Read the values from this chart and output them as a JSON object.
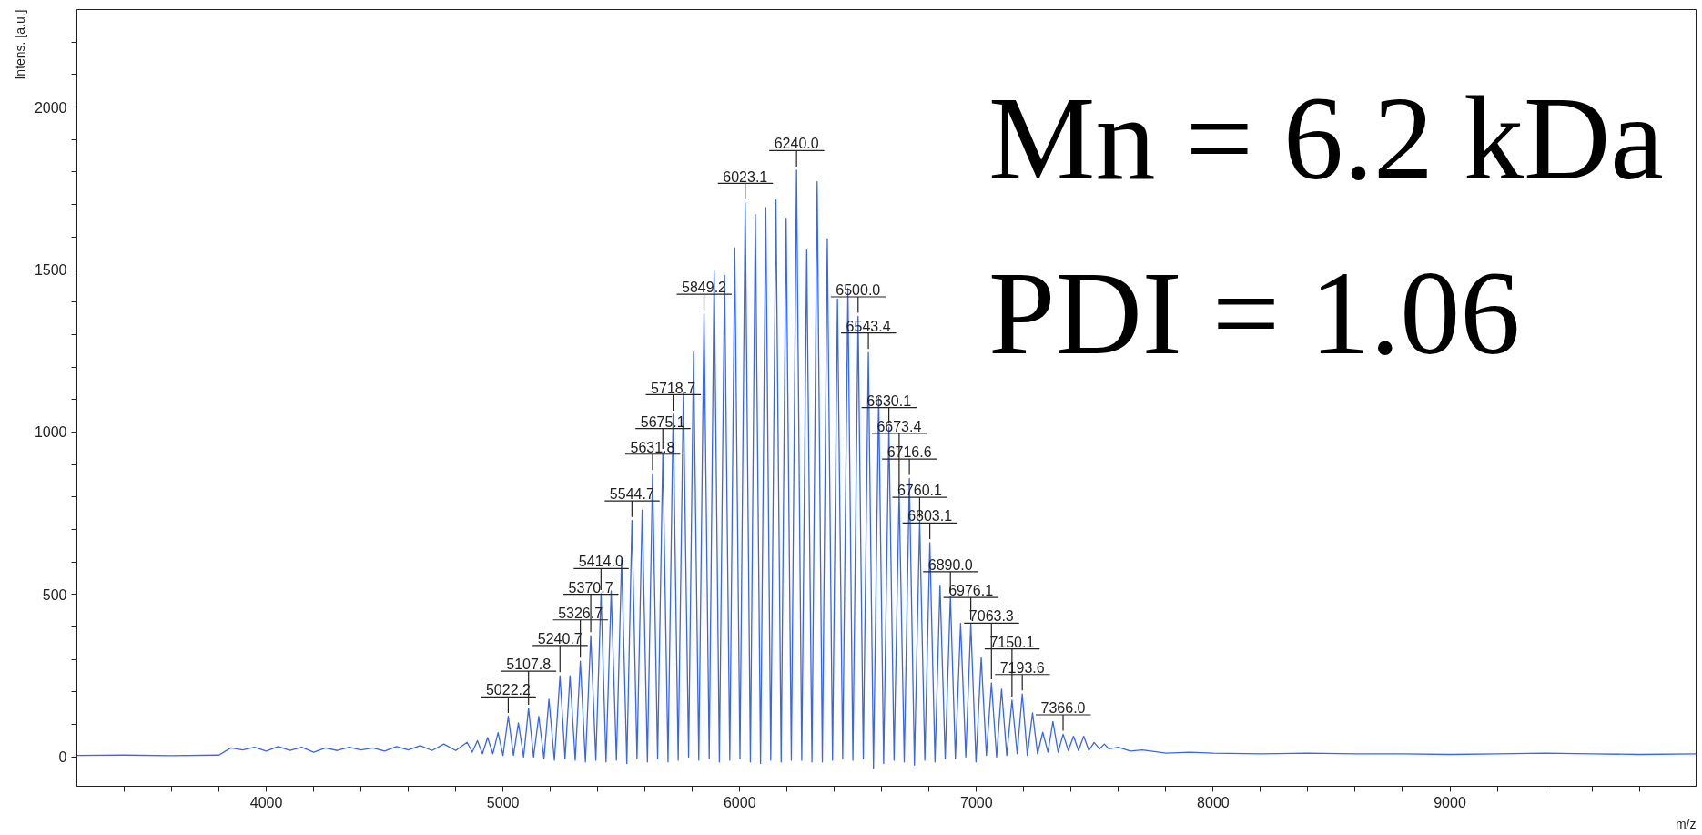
{
  "chart_data": {
    "type": "line",
    "xlabel": "m/z",
    "ylabel": "Intens. [a.u.]",
    "grid": false,
    "marker": "none",
    "line_style": "solid",
    "xlim": [
      3200,
      10040
    ],
    "ylim": [
      -90,
      2300
    ],
    "xticks": [
      {
        "value": 3400,
        "label": null
      },
      {
        "value": 3600,
        "label": null
      },
      {
        "value": 3800,
        "label": null
      },
      4000,
      {
        "value": 4200,
        "label": null
      },
      {
        "value": 4400,
        "label": null
      },
      {
        "value": 4600,
        "label": null
      },
      {
        "value": 4800,
        "label": null
      },
      5000,
      {
        "value": 5200,
        "label": null
      },
      {
        "value": 5400,
        "label": null
      },
      {
        "value": 5600,
        "label": null
      },
      {
        "value": 5800,
        "label": null
      },
      6000,
      {
        "value": 6200,
        "label": null
      },
      {
        "value": 6400,
        "label": null
      },
      {
        "value": 6600,
        "label": null
      },
      {
        "value": 6800,
        "label": null
      },
      7000,
      {
        "value": 7200,
        "label": null
      },
      {
        "value": 7400,
        "label": null
      },
      {
        "value": 7600,
        "label": null
      },
      {
        "value": 7800,
        "label": null
      },
      8000,
      {
        "value": 8200,
        "label": null
      },
      {
        "value": 8400,
        "label": null
      },
      {
        "value": 8600,
        "label": null
      },
      {
        "value": 8800,
        "label": null
      },
      9000,
      {
        "value": 9200,
        "label": null
      },
      {
        "value": 9400,
        "label": null
      },
      {
        "value": 9600,
        "label": null
      },
      {
        "value": 9800,
        "label": null
      }
    ],
    "yticks": [
      0,
      {
        "value": 100,
        "label": null
      },
      {
        "value": 200,
        "label": null
      },
      {
        "value": 300,
        "label": null
      },
      {
        "value": 400,
        "label": null
      },
      500,
      {
        "value": 600,
        "label": null
      },
      {
        "value": 700,
        "label": null
      },
      {
        "value": 800,
        "label": null
      },
      {
        "value": 900,
        "label": null
      },
      1000,
      {
        "value": 1100,
        "label": null
      },
      {
        "value": 1200,
        "label": null
      },
      {
        "value": 1300,
        "label": null
      },
      {
        "value": 1400,
        "label": null
      },
      1500,
      {
        "value": 1600,
        "label": null
      },
      {
        "value": 1700,
        "label": null
      },
      {
        "value": 1800,
        "label": null
      },
      {
        "value": 1900,
        "label": null
      },
      2000,
      {
        "value": 2100,
        "label": null
      },
      {
        "value": 2200,
        "label": null
      }
    ],
    "series": [
      {
        "color": "#3a66e8",
        "x": [
          3200,
          3400,
          3600,
          3800,
          3850,
          3900,
          3950,
          4000,
          4050,
          4100,
          4150,
          4200,
          4250,
          4300,
          4350,
          4400,
          4450,
          4500,
          4550,
          4600,
          4650,
          4700,
          4750,
          4800,
          4848,
          4870,
          4892,
          4913,
          4935,
          4957,
          4979,
          5000,
          5022.2,
          5044,
          5065,
          5087,
          5107.8,
          5129,
          5151,
          5173,
          5194,
          5217,
          5240.7,
          5262,
          5283,
          5305,
          5326.7,
          5348,
          5370.7,
          5392,
          5414.0,
          5435,
          5457,
          5479,
          5501,
          5523,
          5544.7,
          5566,
          5588,
          5610,
          5631.8,
          5653,
          5675.1,
          5697,
          5718.7,
          5740,
          5762,
          5784,
          5805,
          5827,
          5849.2,
          5871,
          5892,
          5914,
          5936,
          5958,
          5979,
          6001,
          6023.1,
          6045,
          6066,
          6088,
          6110,
          6131,
          6153,
          6175,
          6196,
          6218,
          6240.0,
          6262,
          6283,
          6305,
          6327,
          6349,
          6370,
          6392,
          6413,
          6435,
          6457,
          6478,
          6500.0,
          6522,
          6543.4,
          6565,
          6587,
          6608,
          6630.1,
          6652,
          6673.4,
          6695,
          6716.6,
          6738,
          6760.1,
          6782,
          6803.1,
          6825,
          6846,
          6868,
          6890.0,
          6911,
          6933,
          6955,
          6976.1,
          6998,
          7020,
          7042,
          7063.3,
          7085,
          7106,
          7128,
          7150.1,
          7172,
          7193.6,
          7215,
          7237,
          7258,
          7280,
          7302,
          7323,
          7345,
          7366.0,
          7388,
          7410,
          7431,
          7453,
          7475,
          7497,
          7520,
          7540,
          7560,
          7600,
          7650,
          7700,
          7800,
          7900,
          8000,
          8200,
          8400,
          8600,
          8800,
          9000,
          9200,
          9400,
          9600,
          9800,
          10040
        ],
        "values": [
          5,
          6,
          4,
          6,
          28,
          22,
          30,
          18,
          32,
          20,
          30,
          15,
          28,
          20,
          30,
          22,
          28,
          18,
          32,
          22,
          35,
          20,
          40,
          20,
          45,
          15,
          50,
          10,
          60,
          10,
          75,
          5,
          125,
          5,
          105,
          0,
          150,
          0,
          125,
          -5,
          178,
          -10,
          250,
          -5,
          250,
          -10,
          295,
          -15,
          373,
          -10,
          503,
          -15,
          511,
          -10,
          609,
          -20,
          728,
          -5,
          760,
          -15,
          872,
          -5,
          937,
          -15,
          1055,
          -10,
          1121,
          0,
          1246,
          -10,
          1364,
          -5,
          1495,
          -15,
          1482,
          -10,
          1567,
          -5,
          1705,
          -15,
          1669,
          -20,
          1691,
          -10,
          1714,
          -15,
          1658,
          -10,
          1806,
          -10,
          1560,
          -15,
          1770,
          -15,
          1595,
          -10,
          1409,
          -5,
          1442,
          -10,
          1356,
          -5,
          1245,
          -35,
          1107,
          -20,
          1015,
          -10,
          818,
          -15,
          857,
          -25,
          726,
          -10,
          660,
          -15,
          529,
          -5,
          496,
          -5,
          411,
          0,
          411,
          -15,
          306,
          5,
          228,
          0,
          209,
          5,
          175,
          10,
          194,
          5,
          136,
          10,
          76,
          15,
          109,
          15,
          70,
          20,
          64,
          20,
          64,
          20,
          45,
          25,
          40,
          25,
          30,
          18,
          22,
          12,
          15,
          12,
          10,
          12,
          10,
          10,
          8,
          10,
          12,
          10,
          8,
          10
        ]
      }
    ],
    "annotations": [
      {
        "text": "5022.2",
        "x": 5022.2,
        "y": 125
      },
      {
        "text": "5107.8",
        "x": 5107.8,
        "y": 150
      },
      {
        "text": "5240.7",
        "x": 5240.7,
        "y": 250
      },
      {
        "text": "5326.7",
        "x": 5326.7,
        "y": 295
      },
      {
        "text": "5370.7",
        "x": 5370.7,
        "y": 373
      },
      {
        "text": "5414.0",
        "x": 5414.0,
        "y": 503
      },
      {
        "text": "5544.7",
        "x": 5544.7,
        "y": 728
      },
      {
        "text": "5631.8",
        "x": 5631.8,
        "y": 872
      },
      {
        "text": "5675.1",
        "x": 5675.1,
        "y": 937
      },
      {
        "text": "5718.7",
        "x": 5718.7,
        "y": 1055
      },
      {
        "text": "5849.2",
        "x": 5849.2,
        "y": 1364
      },
      {
        "text": "6023.1",
        "x": 6023.1,
        "y": 1705
      },
      {
        "text": "6240.0",
        "x": 6240.0,
        "y": 1806
      },
      {
        "text": "6500.0",
        "x": 6500.0,
        "y": 1356
      },
      {
        "text": "6543.4",
        "x": 6543.4,
        "y": 1245
      },
      {
        "text": "6630.1",
        "x": 6630.1,
        "y": 1015
      },
      {
        "text": "6673.4",
        "x": 6673.4,
        "y": 818
      },
      {
        "text": "6716.6",
        "x": 6716.6,
        "y": 857
      },
      {
        "text": "6760.1",
        "x": 6760.1,
        "y": 726
      },
      {
        "text": "6803.1",
        "x": 6803.1,
        "y": 660
      },
      {
        "text": "6890.0",
        "x": 6890.0,
        "y": 496
      },
      {
        "text": "6976.1",
        "x": 6976.1,
        "y": 411
      },
      {
        "text": "7063.3",
        "x": 7063.3,
        "y": 228
      },
      {
        "text": "7150.1",
        "x": 7150.1,
        "y": 175
      },
      {
        "text": "7193.6",
        "x": 7193.6,
        "y": 194
      },
      {
        "text": "7366.0",
        "x": 7366.0,
        "y": 70
      },
      "Mn = 6.2 kDa",
      "PDI = 1.06"
    ]
  }
}
